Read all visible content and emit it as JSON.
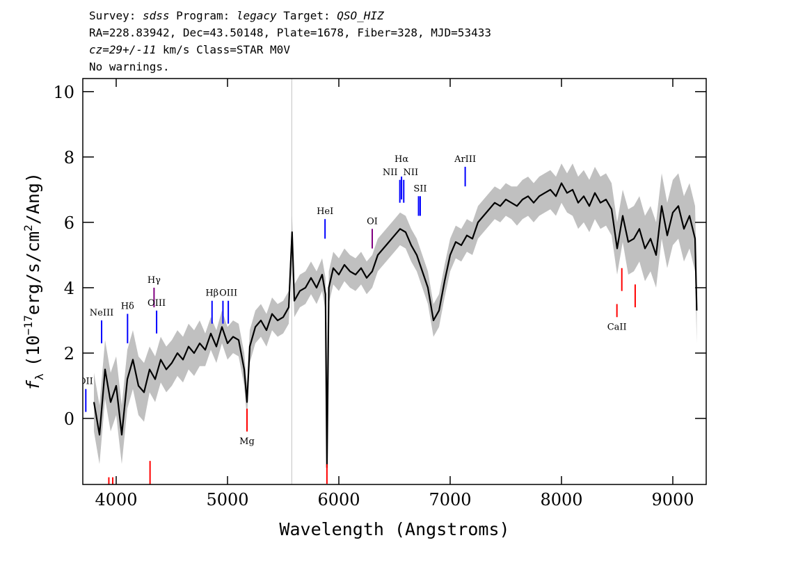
{
  "chart_data": {
    "type": "spectrum",
    "header": [
      [
        {
          "text": "Survey:"
        },
        {
          "text": "sdss",
          "italic": true
        },
        {
          "text": "Program:"
        },
        {
          "text": "legacy",
          "italic": true
        },
        {
          "text": "Target:"
        },
        {
          "text": "QSO_HIZ",
          "italic": true
        }
      ],
      [
        {
          "text": "RA=228.83942, Dec=43.50148, Plate=1678, Fiber=328, MJD=53433"
        }
      ],
      [
        {
          "text": "cz=29+/-11",
          "italic": true
        },
        {
          "text": "km/s Class=STAR M0V"
        }
      ],
      [
        {
          "text": "No warnings."
        }
      ]
    ],
    "xlabel": "Wavelength (Angstroms)",
    "ylabel": [
      {
        "text": "f",
        "italic": true
      },
      {
        "text": "λ",
        "sub": true
      },
      {
        "text": "(10"
      },
      {
        "text": "−17",
        "sup": true
      },
      {
        "text": "erg/s/cm"
      },
      {
        "text": "2",
        "sup": true
      },
      {
        "text": "/Ang)"
      }
    ],
    "xlim": [
      3700,
      9300
    ],
    "ylim": [
      -2.02,
      10.4
    ],
    "xticks": [
      4000,
      5000,
      6000,
      7000,
      8000,
      9000
    ],
    "yticks": [
      0,
      2,
      4,
      6,
      8,
      10
    ],
    "reference_line": {
      "x": 5577,
      "color": "#c0c0c0"
    },
    "series": [
      {
        "color": "#000000",
        "error_color": "#c0c0c0",
        "x": [
          3800,
          3850,
          3900,
          3950,
          4000,
          4050,
          4100,
          4150,
          4200,
          4250,
          4300,
          4350,
          4400,
          4450,
          4500,
          4550,
          4600,
          4650,
          4700,
          4750,
          4800,
          4850,
          4900,
          4950,
          5000,
          5050,
          5100,
          5150,
          5175,
          5200,
          5250,
          5300,
          5350,
          5400,
          5450,
          5500,
          5550,
          5580,
          5600,
          5650,
          5700,
          5750,
          5800,
          5850,
          5880,
          5893,
          5910,
          5950,
          6000,
          6050,
          6100,
          6150,
          6200,
          6250,
          6300,
          6350,
          6400,
          6450,
          6500,
          6550,
          6600,
          6650,
          6700,
          6750,
          6800,
          6850,
          6900,
          6950,
          7000,
          7050,
          7100,
          7150,
          7200,
          7250,
          7300,
          7350,
          7400,
          7450,
          7500,
          7550,
          7600,
          7650,
          7700,
          7750,
          7800,
          7850,
          7900,
          7950,
          8000,
          8050,
          8100,
          8150,
          8200,
          8250,
          8300,
          8350,
          8400,
          8450,
          8500,
          8550,
          8600,
          8650,
          8700,
          8750,
          8800,
          8850,
          8900,
          8950,
          9000,
          9050,
          9100,
          9150,
          9200,
          9215
        ],
        "values": [
          0.5,
          -0.5,
          1.5,
          0.5,
          1.0,
          -0.5,
          1.2,
          1.8,
          1.0,
          0.8,
          1.5,
          1.2,
          1.8,
          1.5,
          1.7,
          2.0,
          1.8,
          2.2,
          2.0,
          2.3,
          2.1,
          2.6,
          2.2,
          2.8,
          2.3,
          2.5,
          2.4,
          1.5,
          0.5,
          2.2,
          2.8,
          3.0,
          2.7,
          3.2,
          3.0,
          3.1,
          3.4,
          5.7,
          3.6,
          3.9,
          4.0,
          4.3,
          4.0,
          4.4,
          3.8,
          -1.5,
          4.0,
          4.6,
          4.4,
          4.7,
          4.5,
          4.4,
          4.6,
          4.3,
          4.5,
          5.0,
          5.2,
          5.4,
          5.6,
          5.8,
          5.7,
          5.3,
          5.0,
          4.5,
          4.0,
          3.0,
          3.3,
          4.2,
          5.0,
          5.4,
          5.3,
          5.6,
          5.5,
          6.0,
          6.2,
          6.4,
          6.6,
          6.5,
          6.7,
          6.6,
          6.5,
          6.7,
          6.8,
          6.6,
          6.8,
          6.9,
          7.0,
          6.8,
          7.2,
          6.9,
          7.0,
          6.6,
          6.8,
          6.5,
          6.9,
          6.6,
          6.7,
          6.4,
          5.2,
          6.2,
          5.4,
          5.5,
          5.8,
          5.2,
          5.5,
          5.0,
          6.5,
          5.6,
          6.3,
          6.5,
          5.8,
          6.2,
          5.5,
          3.3
        ],
        "error": [
          0.9,
          0.9,
          0.9,
          0.9,
          0.9,
          0.9,
          0.9,
          0.9,
          0.9,
          0.9,
          0.7,
          0.7,
          0.7,
          0.7,
          0.7,
          0.7,
          0.7,
          0.7,
          0.7,
          0.7,
          0.5,
          0.5,
          0.5,
          0.5,
          0.5,
          0.5,
          0.5,
          0.5,
          0.5,
          0.5,
          0.5,
          0.5,
          0.5,
          0.5,
          0.5,
          0.5,
          0.5,
          0.5,
          0.5,
          0.5,
          0.5,
          0.5,
          0.5,
          0.5,
          0.5,
          0.5,
          0.5,
          0.5,
          0.5,
          0.5,
          0.5,
          0.5,
          0.5,
          0.5,
          0.5,
          0.5,
          0.5,
          0.5,
          0.5,
          0.5,
          0.5,
          0.5,
          0.5,
          0.5,
          0.5,
          0.5,
          0.5,
          0.5,
          0.5,
          0.5,
          0.5,
          0.5,
          0.5,
          0.5,
          0.5,
          0.5,
          0.5,
          0.5,
          0.5,
          0.5,
          0.6,
          0.6,
          0.6,
          0.6,
          0.6,
          0.6,
          0.6,
          0.6,
          0.6,
          0.6,
          0.8,
          0.8,
          0.8,
          0.8,
          0.8,
          0.8,
          0.8,
          0.8,
          0.8,
          0.8,
          1.0,
          1.0,
          1.0,
          1.0,
          1.0,
          1.0,
          1.0,
          1.0,
          1.0,
          1.0,
          1.0,
          1.0,
          1.0,
          1.0
        ]
      }
    ],
    "lines": [
      {
        "label": "OII",
        "x": 3727,
        "y": [
          0.2,
          0.9
        ],
        "color": "#0000ff"
      },
      {
        "label": "NeIII",
        "x": 3869,
        "y": [
          2.3,
          3.0
        ],
        "color": "#0000ff"
      },
      {
        "label": "Hδ",
        "x": 4102,
        "y": [
          2.3,
          3.2
        ],
        "color": "#0000ff"
      },
      {
        "label": "Hγ",
        "x": 4340,
        "y": [
          3.4,
          4.0
        ],
        "color": "#800080"
      },
      {
        "label": "OIII",
        "x": 4363,
        "y": [
          2.6,
          3.3
        ],
        "color": "#0000ff"
      },
      {
        "label": "Hβ",
        "x": 4861,
        "y": [
          2.9,
          3.6
        ],
        "color": "#0000ff"
      },
      {
        "x": 4959,
        "y": [
          2.9,
          3.6
        ],
        "color": "#0000ff"
      },
      {
        "label": "OIII",
        "x": 5007,
        "y": [
          2.9,
          3.6
        ],
        "color": "#0000ff"
      },
      {
        "label": "Mg",
        "x": 5175,
        "y": [
          -0.4,
          0.3
        ],
        "color": "#ff0000"
      },
      {
        "label": "HeI",
        "x": 5876,
        "y": [
          5.5,
          6.1
        ],
        "color": "#0000ff"
      },
      {
        "x": 5893,
        "y": [
          -2.0,
          -1.4
        ],
        "color": "#ff0000"
      },
      {
        "label": "OI",
        "x": 6300,
        "y": [
          5.2,
          5.8
        ],
        "color": "#800080"
      },
      {
        "label": "NII",
        "x": 6548,
        "y": [
          6.6,
          7.3
        ],
        "color": "#0000ff"
      },
      {
        "label": "Hα",
        "x": 6563,
        "y": [
          6.7,
          7.4
        ],
        "color": "#0000ff"
      },
      {
        "label": "NII",
        "x": 6583,
        "y": [
          6.6,
          7.3
        ],
        "color": "#0000ff"
      },
      {
        "x": 6716,
        "y": [
          6.2,
          6.8
        ],
        "color": "#0000ff"
      },
      {
        "label": "SII",
        "x": 6731,
        "y": [
          6.2,
          6.8
        ],
        "color": "#0000ff"
      },
      {
        "label": "ArIII",
        "x": 7135,
        "y": [
          7.1,
          7.7
        ],
        "color": "#0000ff"
      },
      {
        "label": "CaII",
        "x": 8498,
        "y": [
          3.1,
          3.5
        ],
        "color": "#ff0000"
      },
      {
        "x": 8542,
        "y": [
          3.9,
          4.6
        ],
        "color": "#ff0000"
      },
      {
        "x": 8662,
        "y": [
          3.4,
          4.1
        ],
        "color": "#ff0000"
      },
      {
        "x": 3934,
        "y": [
          -2.1,
          -1.8
        ],
        "color": "#ff0000"
      },
      {
        "x": 3969,
        "y": [
          -2.1,
          -1.8
        ],
        "color": "#ff0000"
      },
      {
        "x": 4304,
        "y": [
          -2.1,
          -1.3
        ],
        "color": "#ff0000"
      }
    ]
  }
}
